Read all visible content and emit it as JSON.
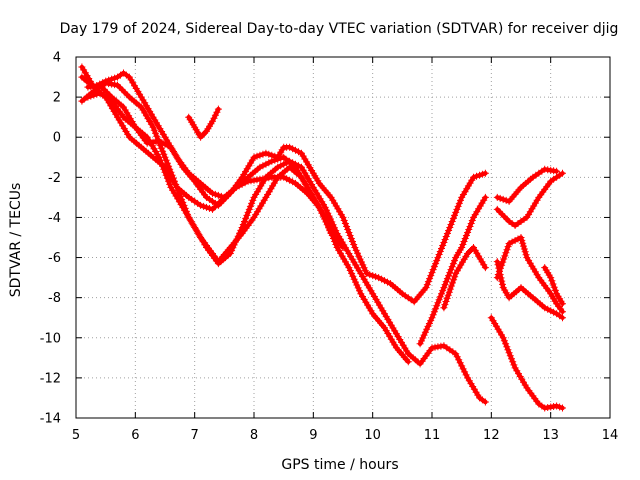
{
  "chart_data": {
    "type": "scatter",
    "title": "Day 179 of 2024, Sidereal Day-to-day VTEC variation (SDTVAR) for receiver djig",
    "xlabel": "GPS time / hours",
    "ylabel": "SDTVAR / TECUs",
    "xlim": [
      5,
      14
    ],
    "ylim": [
      -14,
      4
    ],
    "xticks": [
      "5",
      "6",
      "7",
      "8",
      "9",
      "10",
      "11",
      "12",
      "13",
      "14"
    ],
    "yticks": [
      "-14",
      "-12",
      "-10",
      "-8",
      "-6",
      "-4",
      "-2",
      "0",
      "2",
      "4"
    ],
    "grid": true,
    "marker": "plus",
    "color": "#ff0000",
    "series": [
      {
        "name": "s1",
        "x": [
          5.1,
          5.3,
          5.5,
          5.7,
          5.9,
          6.1,
          6.3,
          6.5,
          6.7,
          6.9,
          7.1,
          7.3,
          7.5,
          7.7,
          7.9,
          8.1,
          8.3,
          8.5,
          8.7,
          8.9,
          9.1,
          9.3,
          9.5
        ],
        "y": [
          3.5,
          2.5,
          2.0,
          1.0,
          0.0,
          -0.5,
          -1.0,
          -1.5,
          -2.5,
          -3.0,
          -3.4,
          -3.6,
          -3.0,
          -2.5,
          -2.2,
          -2.1,
          -2.0,
          -2.0,
          -2.3,
          -2.8,
          -3.5,
          -4.5,
          -5.4
        ]
      },
      {
        "name": "s2",
        "x": [
          5.1,
          5.3,
          5.5,
          5.7,
          5.8,
          5.9,
          6.1,
          6.3,
          6.5,
          6.7,
          6.9,
          7.1,
          7.3,
          7.5,
          7.7,
          7.9,
          8.1,
          8.3,
          8.5,
          8.7,
          8.9,
          9.1,
          9.3,
          9.5
        ],
        "y": [
          3.0,
          2.5,
          2.8,
          3.0,
          3.2,
          3.0,
          2.0,
          1.0,
          0.0,
          -1.0,
          -1.8,
          -2.3,
          -2.8,
          -3.0,
          -2.5,
          -2.0,
          -1.5,
          -1.2,
          -1.0,
          -1.5,
          -2.5,
          -3.5,
          -4.8,
          -5.5
        ]
      },
      {
        "name": "s3",
        "x": [
          5.1,
          5.3,
          5.5,
          5.7,
          5.9,
          6.1,
          6.3,
          6.5,
          6.7,
          6.9,
          7.1,
          7.3,
          7.4,
          7.6,
          7.8,
          8.0,
          8.2,
          8.4,
          8.6,
          8.8,
          9.0,
          9.2,
          9.4,
          9.6,
          9.8,
          10.0,
          10.2,
          10.4,
          10.6
        ],
        "y": [
          1.8,
          2.3,
          2.7,
          2.6,
          2.0,
          1.5,
          0.5,
          -1.0,
          -2.5,
          -4.0,
          -5.0,
          -5.8,
          -6.2,
          -5.5,
          -4.8,
          -4.0,
          -3.0,
          -2.0,
          -1.5,
          -2.0,
          -3.0,
          -4.0,
          -5.5,
          -6.5,
          -7.8,
          -8.8,
          -9.5,
          -10.5,
          -11.2
        ]
      },
      {
        "name": "s4",
        "x": [
          5.2,
          5.4,
          5.6,
          5.8,
          6.0,
          6.2,
          6.4,
          6.6,
          6.8,
          7.0,
          7.2,
          7.4,
          7.6,
          7.8,
          8.0,
          8.2,
          8.4,
          8.6,
          8.8,
          9.0,
          9.2,
          9.4,
          9.6,
          9.8,
          10.0,
          10.2,
          10.4,
          10.6,
          10.8,
          11.0,
          11.2,
          11.4,
          11.6,
          11.8,
          11.9
        ],
        "y": [
          2.0,
          2.2,
          1.8,
          1.0,
          0.5,
          0.0,
          -1.0,
          -2.5,
          -3.5,
          -4.5,
          -5.5,
          -6.3,
          -5.8,
          -4.5,
          -3.0,
          -2.0,
          -1.5,
          -1.2,
          -1.5,
          -2.5,
          -3.5,
          -4.8,
          -5.8,
          -6.8,
          -7.8,
          -8.8,
          -9.8,
          -10.8,
          -11.3,
          -10.5,
          -10.4,
          -10.8,
          -12.0,
          -13.0,
          -13.2
        ]
      },
      {
        "name": "s5",
        "x": [
          5.2,
          5.4,
          5.6,
          5.8,
          6.0,
          6.2,
          6.4,
          6.6,
          6.8,
          7.0,
          7.2,
          7.4,
          7.6,
          7.8,
          8.0,
          8.2,
          8.4,
          8.5,
          8.6,
          8.8,
          9.0,
          9.1,
          9.3,
          9.5,
          9.7,
          9.9,
          10.1,
          10.3,
          10.5,
          10.7,
          10.9,
          11.1,
          11.3,
          11.5,
          11.7,
          11.9
        ],
        "y": [
          2.5,
          2.6,
          2.0,
          1.5,
          0.5,
          -0.3,
          -0.2,
          -0.5,
          -1.5,
          -2.2,
          -3.0,
          -3.4,
          -2.8,
          -2.0,
          -1.0,
          -0.8,
          -1.0,
          -0.5,
          -0.5,
          -0.8,
          -1.8,
          -2.3,
          -3.0,
          -4.0,
          -5.5,
          -6.8,
          -7.0,
          -7.3,
          -7.8,
          -8.2,
          -7.5,
          -6.0,
          -4.5,
          -3.0,
          -2.0,
          -1.8
        ]
      },
      {
        "name": "s6",
        "x": [
          6.9,
          7.0,
          7.1,
          7.2,
          7.3,
          7.4
        ],
        "y": [
          1.0,
          0.5,
          0.0,
          0.3,
          0.8,
          1.4
        ]
      },
      {
        "name": "s7",
        "x": [
          10.8,
          11.0,
          11.2,
          11.4,
          11.5,
          11.7,
          11.9
        ],
        "y": [
          -10.3,
          -9.0,
          -7.5,
          -6.0,
          -5.5,
          -4.0,
          -3.0
        ]
      },
      {
        "name": "s8",
        "x": [
          11.2,
          11.4,
          11.6,
          11.7,
          11.9
        ],
        "y": [
          -8.5,
          -6.8,
          -5.8,
          -5.5,
          -6.5
        ]
      },
      {
        "name": "s9",
        "x": [
          12.1,
          12.3,
          12.5,
          12.7,
          12.9,
          13.1
        ],
        "y": [
          -3.0,
          -3.2,
          -2.5,
          -2.0,
          -1.6,
          -1.7
        ]
      },
      {
        "name": "s10",
        "x": [
          12.1,
          12.3,
          12.4,
          12.6,
          12.8,
          13.0,
          13.2
        ],
        "y": [
          -3.6,
          -4.2,
          -4.4,
          -4.0,
          -3.0,
          -2.2,
          -1.8
        ]
      },
      {
        "name": "s11",
        "x": [
          12.1,
          12.2,
          12.3,
          12.5,
          12.7,
          12.9,
          13.1,
          13.2
        ],
        "y": [
          -6.2,
          -7.5,
          -8.0,
          -7.5,
          -8.0,
          -8.5,
          -8.8,
          -9.0
        ]
      },
      {
        "name": "s12",
        "x": [
          12.1,
          12.3,
          12.5,
          12.6,
          12.8,
          13.0,
          13.1,
          13.2
        ],
        "y": [
          -7.0,
          -5.3,
          -5.0,
          -6.0,
          -7.0,
          -7.8,
          -8.3,
          -8.7
        ]
      },
      {
        "name": "s13",
        "x": [
          12.0,
          12.2,
          12.4,
          12.6,
          12.8,
          12.9,
          13.1,
          13.2
        ],
        "y": [
          -9.0,
          -10.0,
          -11.5,
          -12.5,
          -13.3,
          -13.5,
          -13.4,
          -13.5
        ]
      },
      {
        "name": "s14",
        "x": [
          12.9,
          13.0,
          13.1,
          13.2
        ],
        "y": [
          -6.5,
          -7.0,
          -7.8,
          -8.3
        ]
      }
    ]
  }
}
